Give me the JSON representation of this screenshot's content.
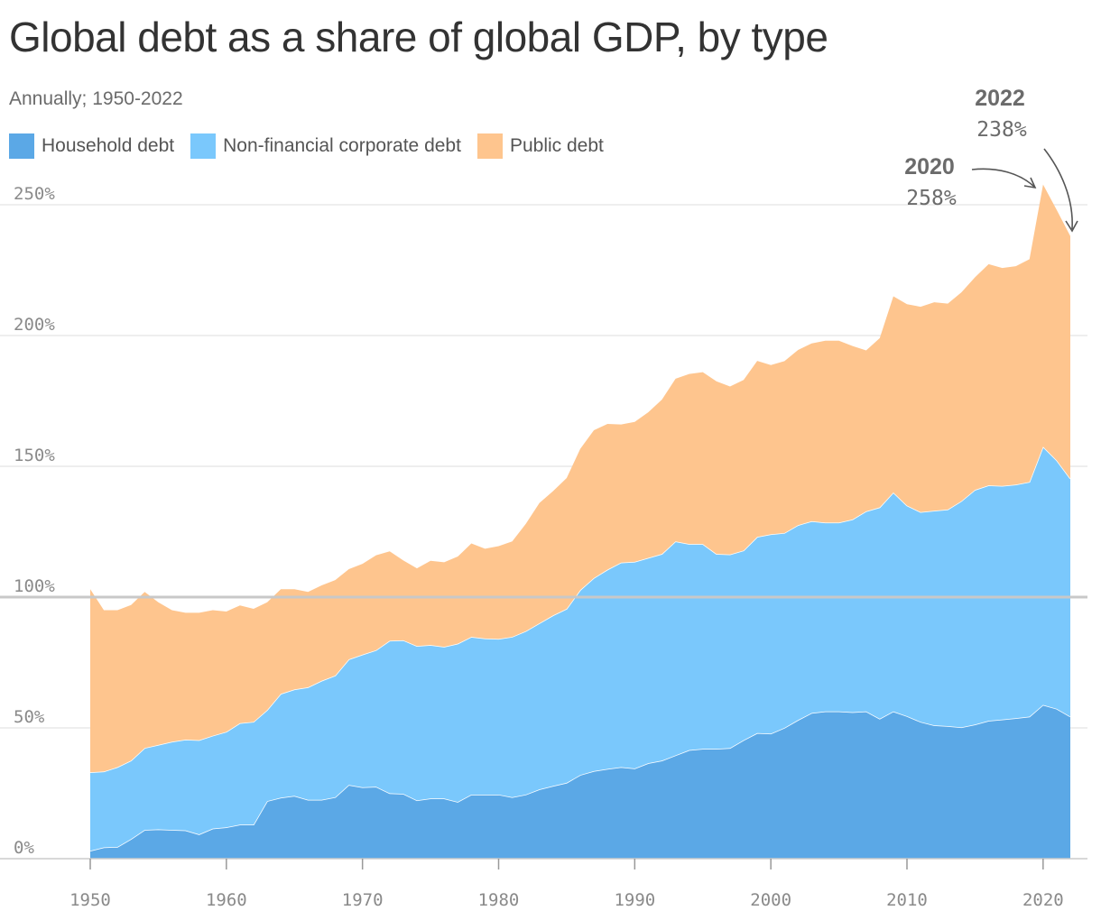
{
  "chart_data": {
    "type": "area",
    "stacked": true,
    "title": "Global debt as a share of global GDP, by type",
    "subtitle": "Annually; 1950-2022",
    "x_start": 1950,
    "x_end": 2022,
    "x_ticks": [
      1950,
      1960,
      1970,
      1980,
      1990,
      2000,
      2010,
      2020
    ],
    "x_tick_labels": [
      "1950",
      "1960",
      "1970",
      "1980",
      "1990",
      "2000",
      "2010",
      "2020"
    ],
    "y_ticks": [
      0,
      50,
      100,
      150,
      200,
      250
    ],
    "y_tick_labels": [
      "0%",
      "50%",
      "100%",
      "150%",
      "200%",
      "250%"
    ],
    "ylim": [
      0,
      270
    ],
    "reference_line": 100,
    "grid": true,
    "legend_position": "top-left",
    "series": [
      {
        "name": "Household debt",
        "color": "#5ba8e6",
        "values": [
          3,
          4.3,
          4.5,
          7.5,
          11,
          11.2,
          11,
          10.8,
          9.3,
          11.5,
          12,
          13,
          13,
          22,
          23.3,
          24,
          22.5,
          22.5,
          23.5,
          28.2,
          27.3,
          27.5,
          25,
          24.8,
          22.3,
          23,
          23,
          21.7,
          24.5,
          24.5,
          24.5,
          23.5,
          24.5,
          26.5,
          27.8,
          29,
          32,
          33.5,
          34.3,
          35,
          34.5,
          36.5,
          37.5,
          39.5,
          41.5,
          42,
          42,
          42.3,
          45.3,
          48,
          47.8,
          50,
          53,
          55.7,
          56.3,
          56.3,
          56,
          56.3,
          53.5,
          56.3,
          54.5,
          52.3,
          51,
          50.7,
          50.2,
          51.3,
          52.7,
          53.2,
          53.7,
          54.3,
          58.8,
          57.3,
          54.3
        ]
      },
      {
        "name": "Non-financial corporate debt",
        "color": "#7ac8fc",
        "values": [
          30,
          29,
          30.5,
          30,
          31.3,
          32.3,
          33.7,
          34.7,
          36,
          35.5,
          36.5,
          38.8,
          39.3,
          34.8,
          39.7,
          40.7,
          43,
          45.5,
          46.5,
          48,
          50.7,
          52.2,
          58.3,
          58.7,
          59,
          58.7,
          58,
          60.5,
          60.3,
          59.7,
          59.5,
          61.3,
          62.5,
          63.5,
          65.2,
          66.5,
          70.7,
          73.8,
          76.2,
          78.2,
          79,
          78.5,
          79,
          81.8,
          78.8,
          78.3,
          74.5,
          74,
          72.5,
          75,
          76.2,
          74.5,
          74.5,
          73.3,
          72.2,
          72.2,
          73.7,
          76.5,
          80.8,
          83.7,
          80.5,
          80.2,
          82,
          82.8,
          86.5,
          89.7,
          90,
          89.3,
          89.3,
          89.7,
          98.7,
          95,
          91
        ]
      },
      {
        "name": "Public debt",
        "color": "#fec58e",
        "values": [
          70,
          61.7,
          60,
          59.5,
          59.7,
          54.5,
          50.3,
          48.5,
          48.7,
          48,
          46,
          45,
          43.2,
          41.2,
          40,
          38.3,
          36.5,
          36.5,
          36.5,
          34.5,
          34.7,
          36.3,
          34.2,
          30.5,
          29.7,
          32.2,
          32.3,
          33.3,
          35.7,
          34.3,
          35.5,
          36.5,
          41,
          46,
          47.5,
          50,
          54,
          56.5,
          55.7,
          52.8,
          53.5,
          55.7,
          59,
          62.2,
          65,
          65.7,
          66,
          64.2,
          65.2,
          67.3,
          64.7,
          65.7,
          67,
          68,
          69.5,
          69.5,
          66.3,
          61.5,
          64.7,
          75,
          77,
          78.5,
          79.7,
          78.7,
          79.8,
          81.3,
          84.6,
          83.3,
          83.5,
          85.2,
          100.2,
          95.7,
          92.7
        ]
      }
    ],
    "annotations": [
      {
        "year": "2020",
        "value": "258%"
      },
      {
        "year": "2022",
        "value": "238%"
      }
    ]
  }
}
